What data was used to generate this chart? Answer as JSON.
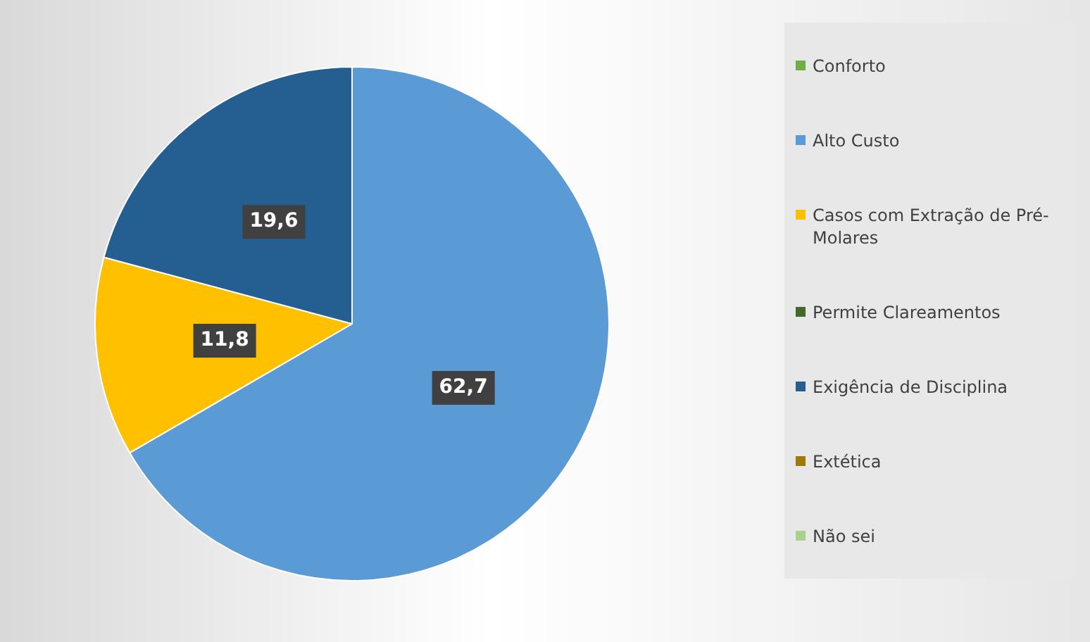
{
  "chart_data": {
    "type": "pie",
    "categories": [
      "Conforto",
      "Alto Custo",
      "Casos com Extração de Pré-Molares",
      "Permite Clareamentos",
      "Exigência de Disciplina",
      "Extética",
      "Não sei"
    ],
    "values": [
      0,
      62.7,
      11.8,
      0,
      19.6,
      0,
      0
    ],
    "colors": [
      "#70ad47",
      "#5b9bd5",
      "#ffc000",
      "#43682b",
      "#255e91",
      "#9e7a0e",
      "#a9d18e"
    ],
    "value_labels": [
      null,
      "62,7",
      "11,8",
      null,
      "19,6",
      null,
      null
    ],
    "legend": "right"
  }
}
